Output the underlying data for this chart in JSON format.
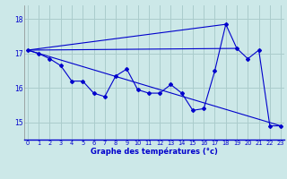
{
  "title": "Graphe des températures (°c)",
  "bg_color": "#cce8e8",
  "line_color": "#0000cc",
  "grid_color": "#aacccc",
  "x_ticks": [
    0,
    1,
    2,
    3,
    4,
    5,
    6,
    7,
    8,
    9,
    10,
    11,
    12,
    13,
    14,
    15,
    16,
    17,
    18,
    19,
    20,
    21,
    22,
    23
  ],
  "y_ticks": [
    15,
    16,
    17,
    18
  ],
  "ylim": [
    14.5,
    18.4
  ],
  "xlim": [
    -0.3,
    23.3
  ],
  "series1_x": [
    0,
    1,
    2,
    3,
    4,
    5,
    6,
    7,
    8,
    9,
    10,
    11,
    12,
    13,
    14,
    15,
    16,
    17,
    18,
    19,
    20,
    21,
    22,
    23
  ],
  "series1_y": [
    17.1,
    17.0,
    16.85,
    16.65,
    16.2,
    16.2,
    15.85,
    15.75,
    16.35,
    16.55,
    15.95,
    15.85,
    15.85,
    16.1,
    15.85,
    15.35,
    15.4,
    16.5,
    17.85,
    17.15,
    16.85,
    17.1,
    14.9,
    14.9
  ],
  "series2_x": [
    0,
    23
  ],
  "series2_y": [
    17.1,
    14.9
  ],
  "series3_x": [
    0,
    19
  ],
  "series3_y": [
    17.1,
    17.15
  ],
  "series4_x": [
    0,
    18
  ],
  "series4_y": [
    17.1,
    17.85
  ]
}
